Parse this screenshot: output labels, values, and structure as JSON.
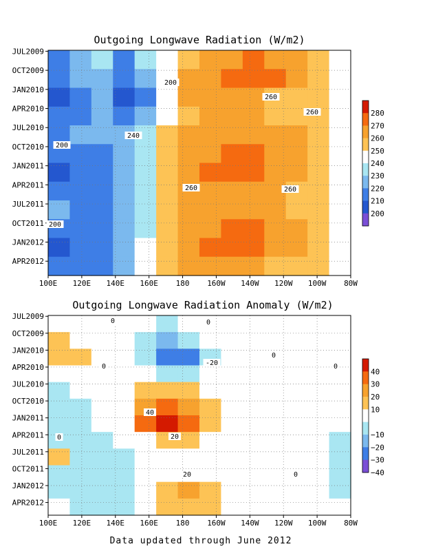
{
  "chart_data": [
    {
      "type": "heatmap",
      "title": "Outgoing Longwave Radiation (W/m2)",
      "x_ticks": [
        "100E",
        "120E",
        "140E",
        "160E",
        "180",
        "160W",
        "140W",
        "120W",
        "100W",
        "80W"
      ],
      "y_ticks": [
        "JUL2009",
        "OCT2009",
        "JAN2010",
        "APR2010",
        "JUL2010",
        "OCT2010",
        "JAN2011",
        "APR2011",
        "JUL2011",
        "OCT2011",
        "JAN2012",
        "APR2012"
      ],
      "colorbar_ticks": [
        "280",
        "270",
        "260",
        "250",
        "240",
        "230",
        "220",
        "210",
        "200"
      ],
      "colorbar_colors": [
        "#d41a00",
        "#f56a10",
        "#f7a22e",
        "#fdc355",
        "#ffffff",
        "#a9e6f2",
        "#7bb9ee",
        "#3e7ee6",
        "#2457cf",
        "#7a4fd6"
      ],
      "contour_labels": [
        "200",
        "260",
        "260",
        "240",
        "200",
        "260",
        "260",
        "200"
      ],
      "nrows": 12,
      "grid": [
        [
          215,
          225,
          232,
          215,
          230,
          248,
          258,
          262,
          266,
          270,
          268,
          262,
          255,
          248
        ],
        [
          212,
          222,
          228,
          212,
          228,
          245,
          262,
          268,
          272,
          274,
          270,
          264,
          256,
          248
        ],
        [
          208,
          215,
          222,
          205,
          218,
          240,
          262,
          268,
          268,
          262,
          258,
          256,
          252,
          246
        ],
        [
          212,
          218,
          222,
          215,
          228,
          245,
          258,
          262,
          262,
          262,
          258,
          258,
          252,
          246
        ],
        [
          218,
          220,
          222,
          224,
          238,
          252,
          260,
          264,
          266,
          266,
          264,
          260,
          252,
          245
        ],
        [
          212,
          215,
          218,
          222,
          238,
          252,
          262,
          268,
          272,
          272,
          268,
          262,
          252,
          244
        ],
        [
          205,
          210,
          215,
          222,
          238,
          252,
          262,
          270,
          273,
          272,
          266,
          260,
          252,
          244
        ],
        [
          210,
          212,
          215,
          222,
          238,
          252,
          260,
          264,
          264,
          262,
          260,
          256,
          250,
          243
        ],
        [
          220,
          218,
          215,
          222,
          238,
          252,
          260,
          264,
          266,
          266,
          264,
          258,
          250,
          243
        ],
        [
          215,
          212,
          212,
          220,
          238,
          252,
          262,
          268,
          272,
          272,
          268,
          262,
          252,
          244
        ],
        [
          205,
          210,
          212,
          220,
          240,
          252,
          262,
          270,
          272,
          270,
          266,
          260,
          252,
          244
        ],
        [
          210,
          214,
          218,
          225,
          242,
          252,
          260,
          262,
          262,
          260,
          258,
          256,
          250,
          243
        ]
      ]
    },
    {
      "type": "heatmap",
      "title": "Outgoing Longwave Radiation Anomaly (W/m2)",
      "x_ticks": [
        "100E",
        "120E",
        "140E",
        "160E",
        "180",
        "160W",
        "140W",
        "120W",
        "100W",
        "80W"
      ],
      "y_ticks": [
        "JUL2009",
        "OCT2009",
        "JAN2010",
        "APR2010",
        "JUL2010",
        "OCT2010",
        "JAN2011",
        "APR2011",
        "JUL2011",
        "OCT2011",
        "JAN2012",
        "APR2012"
      ],
      "colorbar_ticks": [
        "40",
        "30",
        "20",
        "10",
        "−10",
        "−20",
        "−30",
        "−40"
      ],
      "colorbar_colors": [
        "#d41a00",
        "#f56a10",
        "#f7a22e",
        "#fdc355",
        "#ffffff",
        "#a9e6f2",
        "#7bb9ee",
        "#3e7ee6",
        "#7a4fd6"
      ],
      "contour_labels": [
        "0",
        "0",
        "0",
        "-20",
        "0",
        "0",
        "40",
        "20",
        "0",
        "0",
        "20"
      ],
      "nrows": 12,
      "grid": [
        [
          0,
          0,
          0,
          0,
          -8,
          -12,
          -5,
          0,
          0,
          0,
          0,
          0,
          0,
          0
        ],
        [
          14,
          4,
          0,
          -5,
          -10,
          -22,
          -18,
          -5,
          0,
          0,
          0,
          0,
          0,
          0
        ],
        [
          14,
          12,
          5,
          0,
          -10,
          -30,
          -35,
          -18,
          -5,
          0,
          0,
          0,
          0,
          0
        ],
        [
          0,
          0,
          0,
          0,
          -5,
          -12,
          -12,
          -6,
          0,
          0,
          0,
          0,
          0,
          0
        ],
        [
          -12,
          -5,
          0,
          5,
          15,
          18,
          14,
          8,
          0,
          0,
          0,
          0,
          0,
          0
        ],
        [
          -15,
          -10,
          -5,
          5,
          25,
          30,
          25,
          14,
          5,
          0,
          0,
          0,
          0,
          0
        ],
        [
          -12,
          -10,
          -8,
          5,
          32,
          45,
          30,
          16,
          5,
          0,
          0,
          -5,
          -5,
          -8
        ],
        [
          -15,
          -14,
          -12,
          -5,
          8,
          14,
          10,
          5,
          0,
          0,
          0,
          -8,
          -8,
          -10
        ],
        [
          12,
          -14,
          -15,
          -10,
          0,
          0,
          0,
          0,
          0,
          0,
          0,
          -8,
          -8,
          -10
        ],
        [
          -10,
          -12,
          -14,
          -10,
          0,
          0,
          0,
          0,
          0,
          0,
          0,
          -8,
          -8,
          -10
        ],
        [
          -10,
          -14,
          -14,
          -10,
          5,
          18,
          25,
          15,
          5,
          0,
          0,
          -8,
          -8,
          -10
        ],
        [
          -8,
          -14,
          -14,
          -10,
          5,
          14,
          14,
          10,
          0,
          0,
          0,
          -6,
          -6,
          -8
        ]
      ]
    }
  ],
  "footer": "Data updated through June 2012"
}
